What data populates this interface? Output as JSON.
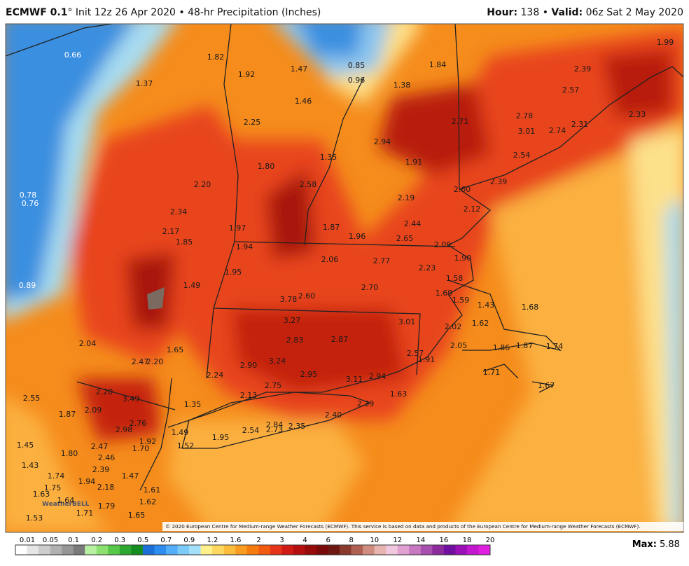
{
  "header": {
    "model": "ECMWF 0.1",
    "title": "° Init 12z 26 Apr 2020 • 48-hr Precipitation (Inches)",
    "hour_key": "Hour:",
    "hour": "138",
    "separator": "•",
    "valid_key": "Valid:",
    "valid": "06z Sat 2 May 2020"
  },
  "map": {
    "labels": [
      "0.66",
      "1.82",
      "1.92",
      "1.47",
      "0.85",
      "0.96",
      "1.84",
      "1.99",
      "2.39",
      "1.37",
      "1.38",
      "2.57",
      "1.46",
      "2.25",
      "2.71",
      "2.78",
      "3.01",
      "2.74",
      "2.31",
      "2.33",
      "2.94",
      "1.35",
      "1.91",
      "2.54",
      "1.80",
      "2.20",
      "2.58",
      "2.60",
      "2.39",
      "0.78",
      "0.76",
      "2.19",
      "2.12",
      "2.34",
      "1.87",
      "2.44",
      "1.97",
      "2.17",
      "1.96",
      "2.65",
      "1.85",
      "1.94",
      "2.00",
      "1.90",
      "2.06",
      "2.77",
      "2.23",
      "1.95",
      "1.58",
      "0.89",
      "1.49",
      "2.70",
      "1.69",
      "1.59",
      "3.78",
      "2.60",
      "1.43",
      "1.68",
      "3.27",
      "3.01",
      "1.62",
      "2.02",
      "2.04",
      "2.83",
      "2.87",
      "2.05",
      "1.86",
      "1.87",
      "1.74",
      "1.65",
      "2.57",
      "1.91",
      "2.47",
      "2.20",
      "3.24",
      "2.90",
      "2.95",
      "1.71",
      "2.24",
      "3.11",
      "2.94",
      "2.75",
      "1.67",
      "2.20",
      "2.55",
      "3.49",
      "2.13",
      "1.63",
      "1.35",
      "2.39",
      "2.09",
      "1.87",
      "2.40",
      "2.76",
      "2.98",
      "2.84",
      "2.35",
      "2.54",
      "2.73",
      "1.49",
      "1.95",
      "1.92",
      "1.45",
      "2.47",
      "1.70",
      "1.52",
      "1.80",
      "2.46",
      "1.43",
      "2.39",
      "1.74",
      "1.47",
      "1.94",
      "2.18",
      "1.75",
      "1.61",
      "1.63",
      "1.64",
      "1.62",
      "1.79",
      "1.71",
      "1.65",
      "1.53"
    ],
    "logo": "WeatherBELL",
    "copyright": "© 2020 European Centre for Medium-range Weather Forecasts (ECMWF). This service is based on data and products of the European Centre for Medium-range Weather Forecasts (ECMWF)."
  },
  "colorbar": {
    "ticks": [
      "0.01",
      "0.05",
      "0.1",
      "0.2",
      "0.3",
      "0.5",
      "0.7",
      "0.9",
      "1.2",
      "1.6",
      "2",
      "3",
      "4",
      "6",
      "8",
      "10",
      "12",
      "14",
      "16",
      "18",
      "20"
    ]
  },
  "max": {
    "key": "Max:",
    "value": "5.88"
  }
}
